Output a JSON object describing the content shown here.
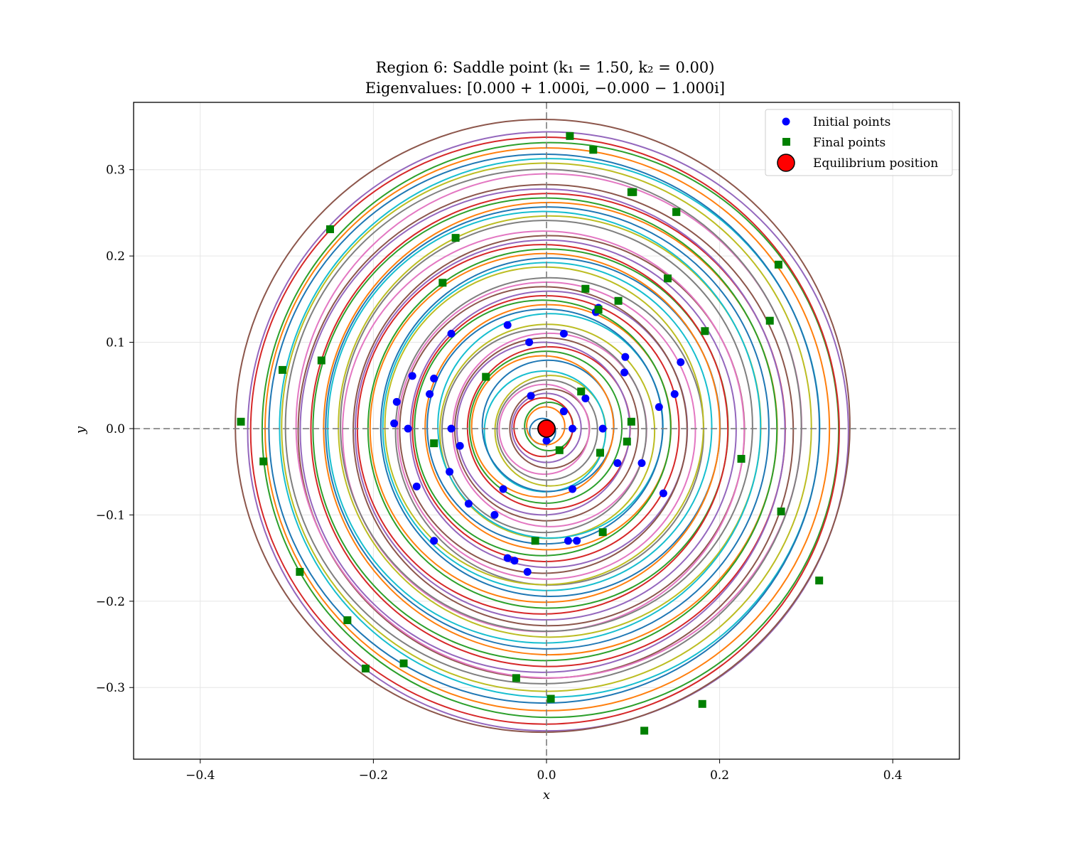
{
  "chart_data": {
    "type": "line",
    "title": "Region 6: Saddle point (k₁ = 1.50, k₂ = 0.00)",
    "subtitle": "Eigenvalues: [0.000 + 1.000i, −0.000 − 1.000i]",
    "xlabel": "x",
    "ylabel": "y",
    "xlim": [
      -0.477,
      0.477
    ],
    "ylim": [
      -0.383,
      0.378
    ],
    "xticks": [
      -0.4,
      -0.2,
      0.0,
      0.2,
      0.4
    ],
    "xtick_labels": [
      "−0.4",
      "−0.2",
      "0.0",
      "0.2",
      "0.4"
    ],
    "yticks": [
      -0.3,
      -0.2,
      -0.1,
      0.0,
      0.1,
      0.2,
      0.3
    ],
    "ytick_labels": [
      "−0.3",
      "−0.2",
      "−0.1",
      "0.0",
      "0.1",
      "0.2",
      "0.3"
    ],
    "grid": true,
    "legend": {
      "placement": "top-right",
      "entries": [
        {
          "label": "Initial points",
          "marker": "circle",
          "color": "#0000ff"
        },
        {
          "label": "Final points",
          "marker": "square",
          "color": "#008000"
        },
        {
          "label": "Equilibrium position",
          "marker": "big-circle",
          "color": "#ff0000"
        }
      ]
    },
    "equilibrium": {
      "x": 0.0,
      "y": 0.0
    },
    "series_colors": [
      "#1f77b4",
      "#ff7f0e",
      "#2ca02c",
      "#d62728",
      "#9467bd",
      "#8c564b",
      "#e377c2",
      "#7f7f7f",
      "#bcbd22",
      "#17becf"
    ],
    "trajectory_radii": [
      0.015,
      0.022,
      0.028,
      0.034,
      0.04,
      0.046,
      0.052,
      0.058,
      0.064,
      0.07,
      0.076,
      0.082,
      0.088,
      0.094,
      0.1,
      0.106,
      0.112,
      0.118,
      0.124,
      0.13,
      0.136,
      0.142,
      0.148,
      0.154,
      0.16,
      0.166,
      0.172,
      0.178,
      0.184,
      0.19,
      0.196,
      0.202,
      0.208,
      0.214,
      0.22,
      0.226,
      0.232,
      0.238,
      0.244,
      0.25,
      0.256,
      0.262,
      0.268,
      0.274,
      0.28,
      0.286,
      0.292,
      0.298,
      0.306,
      0.312,
      0.318,
      0.326,
      0.333,
      0.34,
      0.347,
      0.355
    ],
    "initial_points": [
      [
        0.02,
        0.11
      ],
      [
        0.057,
        0.135
      ],
      [
        0.091,
        0.083
      ],
      [
        0.148,
        0.04
      ],
      [
        0.11,
        -0.04
      ],
      [
        0.03,
        -0.07
      ],
      [
        -0.11,
        0.11
      ],
      [
        -0.16,
        0.0
      ],
      [
        -0.135,
        0.04
      ],
      [
        -0.05,
        -0.07
      ],
      [
        -0.13,
        -0.13
      ],
      [
        -0.045,
        -0.15
      ],
      [
        0.025,
        -0.13
      ],
      [
        -0.11,
        0.0
      ],
      [
        0.065,
        0.0
      ],
      [
        0.045,
        0.035
      ],
      [
        0.02,
        0.02
      ],
      [
        0.03,
        0.0
      ],
      [
        0.0,
        -0.014
      ],
      [
        -0.018,
        0.038
      ],
      [
        0.09,
        0.065
      ],
      [
        0.155,
        0.077
      ],
      [
        0.13,
        0.025
      ],
      [
        0.135,
        -0.075
      ],
      [
        -0.02,
        0.1
      ],
      [
        -0.045,
        0.12
      ],
      [
        -0.155,
        0.061
      ],
      [
        -0.13,
        0.058
      ],
      [
        -0.112,
        -0.05
      ],
      [
        -0.173,
        0.031
      ],
      [
        -0.176,
        0.006
      ],
      [
        -0.15,
        -0.067
      ],
      [
        -0.09,
        -0.087
      ],
      [
        -0.06,
        -0.1
      ],
      [
        -0.037,
        -0.153
      ],
      [
        -0.022,
        -0.166
      ],
      [
        -0.1,
        -0.02
      ],
      [
        0.035,
        -0.13
      ],
      [
        0.082,
        -0.04
      ],
      [
        0.06,
        0.14
      ]
    ],
    "final_points": [
      [
        0.027,
        0.339
      ],
      [
        0.054,
        0.323
      ],
      [
        0.098,
        0.274
      ],
      [
        0.15,
        0.251
      ],
      [
        0.268,
        0.19
      ],
      [
        0.14,
        0.174
      ],
      [
        0.083,
        0.148
      ],
      [
        0.06,
        0.138
      ],
      [
        0.04,
        0.043
      ],
      [
        0.015,
        -0.025
      ],
      [
        -0.353,
        0.008
      ],
      [
        -0.327,
        -0.038
      ],
      [
        -0.26,
        0.079
      ],
      [
        -0.305,
        0.068
      ],
      [
        -0.25,
        0.231
      ],
      [
        -0.12,
        0.169
      ],
      [
        -0.105,
        0.221
      ],
      [
        -0.285,
        -0.166
      ],
      [
        -0.23,
        -0.222
      ],
      [
        -0.209,
        -0.278
      ],
      [
        -0.165,
        -0.272
      ],
      [
        -0.035,
        -0.289
      ],
      [
        0.005,
        -0.313
      ],
      [
        0.18,
        -0.319
      ],
      [
        0.113,
        -0.35
      ],
      [
        0.315,
        -0.176
      ],
      [
        0.271,
        -0.096
      ],
      [
        0.225,
        -0.035
      ],
      [
        0.258,
        0.125
      ],
      [
        0.183,
        0.113
      ],
      [
        0.098,
        0.008
      ],
      [
        0.093,
        -0.015
      ],
      [
        -0.013,
        -0.13
      ],
      [
        -0.13,
        -0.017
      ],
      [
        0.062,
        -0.028
      ],
      [
        0.065,
        -0.12
      ],
      [
        0.1,
        0.274
      ],
      [
        0.15,
        0.251
      ],
      [
        0.045,
        0.162
      ],
      [
        -0.07,
        0.06
      ]
    ]
  }
}
